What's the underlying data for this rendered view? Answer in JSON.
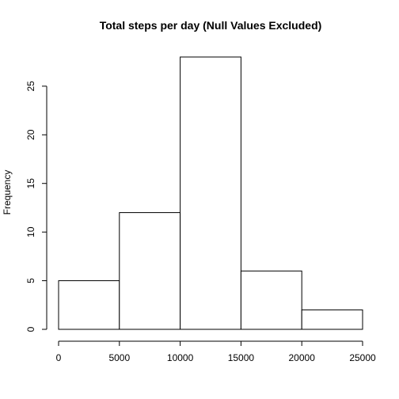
{
  "chart_data": {
    "type": "bar",
    "title": "Total steps per day (Null Values Excluded)",
    "xlabel": "",
    "ylabel": "Frequency",
    "bins": [
      {
        "from": 0,
        "to": 5000,
        "count": 5
      },
      {
        "from": 5000,
        "to": 10000,
        "count": 12
      },
      {
        "from": 10000,
        "to": 15000,
        "count": 28
      },
      {
        "from": 15000,
        "to": 20000,
        "count": 6
      },
      {
        "from": 20000,
        "to": 25000,
        "count": 2
      }
    ],
    "xlim": [
      0,
      25000
    ],
    "ylim": [
      0,
      28
    ],
    "x_ticks": [
      "0",
      "5000",
      "10000",
      "15000",
      "20000",
      "25000"
    ],
    "y_ticks": [
      "0",
      "5",
      "10",
      "15",
      "20",
      "25"
    ],
    "grid": false,
    "bar_fill": "#ffffff",
    "bar_stroke": "#000000"
  }
}
